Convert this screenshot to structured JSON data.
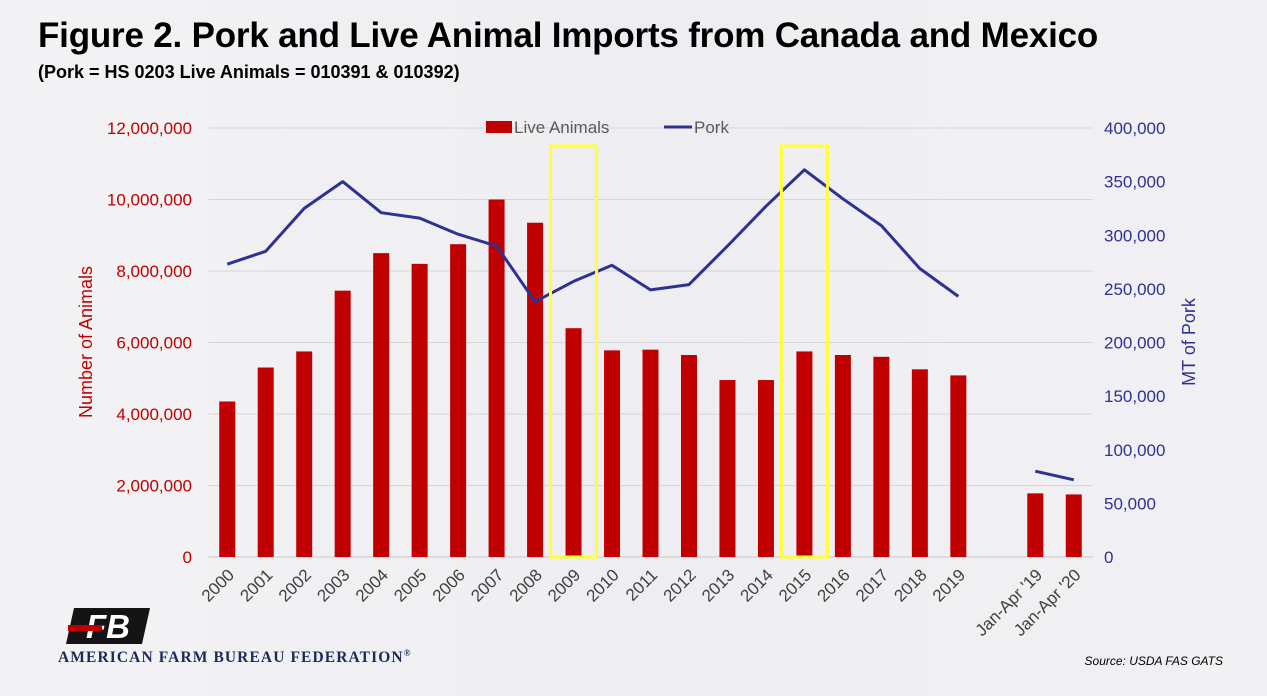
{
  "header": {
    "title": "Figure 2. Pork and Live Animal Imports from Canada and Mexico",
    "subtitle": "(Pork = HS 0203 Live Animals = 010391 & 010392)"
  },
  "footer": {
    "organization": "AMERICAN FARM BUREAU FEDERATION",
    "organization_mark": "®",
    "logo_text": "FB",
    "source": "Source: USDA FAS GATS"
  },
  "colors": {
    "bars": "#c00000",
    "line": "#2e3192",
    "highlight": "#ffff33",
    "grid": "#d6d6d9",
    "left_axis_text": "#c00000",
    "right_axis_text": "#2e3192"
  },
  "chart_data": {
    "type": "bar+line",
    "categories": [
      "2000",
      "2001",
      "2002",
      "2003",
      "2004",
      "2005",
      "2006",
      "2007",
      "2008",
      "2009",
      "2010",
      "2011",
      "2012",
      "2013",
      "2014",
      "2015",
      "2016",
      "2017",
      "2018",
      "2019",
      "",
      "Jan-Apr '19",
      "Jan-Apr '20"
    ],
    "series": [
      {
        "name": "Live Animals",
        "type": "bar",
        "axis": "left",
        "values": [
          4350000,
          5300000,
          5750000,
          7450000,
          8500000,
          8200000,
          8750000,
          10000000,
          9350000,
          6400000,
          5780000,
          5800000,
          5650000,
          4950000,
          4950000,
          5750000,
          5650000,
          5600000,
          5250000,
          5080000,
          null,
          1780000,
          1750000
        ]
      },
      {
        "name": "Pork",
        "type": "line",
        "axis": "right",
        "values": [
          273000,
          285000,
          325000,
          350000,
          321000,
          316000,
          301000,
          290000,
          238000,
          257000,
          272000,
          249000,
          254000,
          290000,
          327000,
          361000,
          334000,
          309000,
          269000,
          243000,
          null,
          80000,
          72000
        ]
      }
    ],
    "y_left": {
      "label": "Number of Animals",
      "min": 0,
      "max": 12000000,
      "ticks": [
        0,
        2000000,
        4000000,
        6000000,
        8000000,
        10000000,
        12000000
      ],
      "tick_labels": [
        "0",
        "2,000,000",
        "4,000,000",
        "6,000,000",
        "8,000,000",
        "10,000,000",
        "12,000,000"
      ]
    },
    "y_right": {
      "label": "MT of Pork",
      "min": 0,
      "max": 400000,
      "ticks": [
        0,
        50000,
        100000,
        150000,
        200000,
        250000,
        300000,
        350000,
        400000
      ],
      "tick_labels": [
        "0",
        "50,000",
        "100,000",
        "150,000",
        "200,000",
        "250,000",
        "300,000",
        "350,000",
        "400,000"
      ]
    },
    "highlighted_categories": [
      "2009",
      "2015"
    ],
    "legend": {
      "position": "top",
      "entries": [
        "Live Animals",
        "Pork"
      ]
    },
    "grid": true
  }
}
